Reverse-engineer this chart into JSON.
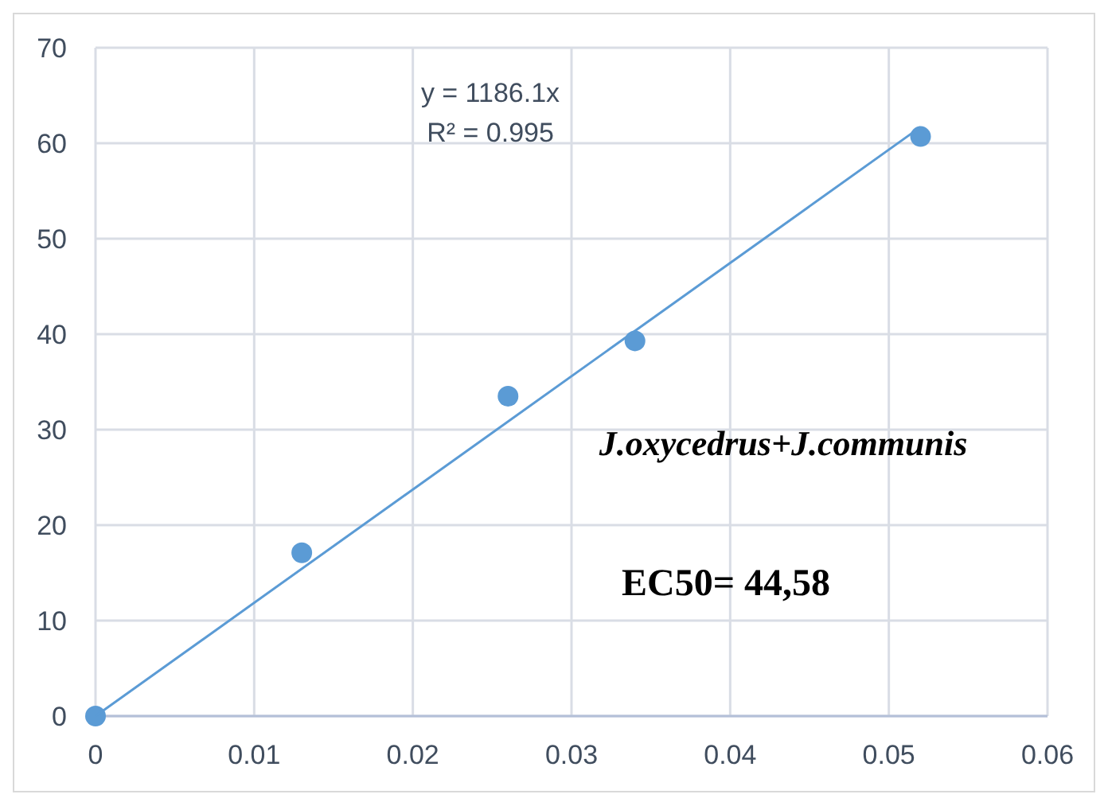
{
  "chart_data": {
    "type": "scatter",
    "xlim": [
      0,
      0.06
    ],
    "xticks": [
      0,
      0.01,
      0.02,
      0.03,
      0.04,
      0.05,
      0.06
    ],
    "ylim": [
      0,
      70
    ],
    "yticks": [
      0,
      10,
      20,
      30,
      40,
      50,
      60,
      70
    ],
    "grid": true,
    "series": [
      {
        "color": "#5b9bd5",
        "marker": "circle",
        "x": [
          0,
          0.013,
          0.026,
          0.034,
          0.052
        ],
        "values": [
          0,
          17.1,
          33.5,
          39.3,
          60.7
        ]
      },
      {
        "type": "line",
        "marker": "none",
        "color": "#5b9bd5",
        "x": [
          0,
          0.052
        ],
        "values": [
          0,
          61.7
        ]
      }
    ],
    "annotations": [
      "y = 1186.1x",
      "R² = 0.995",
      "J.oxycedrus+J.communis",
      "EC50= 44,58"
    ]
  }
}
